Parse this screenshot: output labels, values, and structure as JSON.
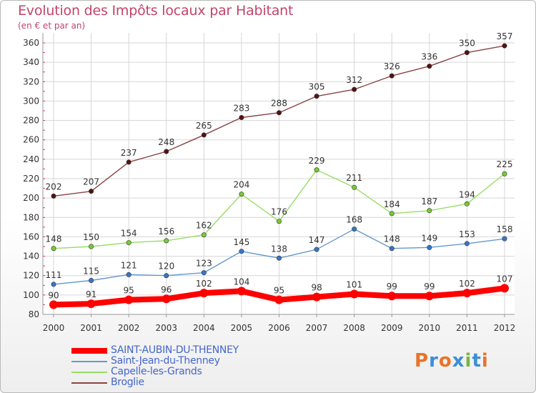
{
  "title": "Evolution des Impôts locaux par Habitant",
  "subtitle": "(en € et par an)",
  "logo": {
    "text": "Proxiti",
    "colors": [
      "#e8732a",
      "#3b8fd6",
      "#e8732a",
      "#3b8fd6",
      "#7cb342",
      "#3b8fd6",
      "#e8732a"
    ]
  },
  "chart_data": {
    "type": "line",
    "x": [
      "2000",
      "2001",
      "2002",
      "2003",
      "2004",
      "2005",
      "2006",
      "2007",
      "2008",
      "2009",
      "2010",
      "2011",
      "2012"
    ],
    "ylim": [
      80,
      360
    ],
    "yticks": [
      80,
      100,
      120,
      140,
      160,
      180,
      200,
      220,
      240,
      260,
      280,
      300,
      320,
      340,
      360
    ],
    "grid": true,
    "legend_position": "bottom",
    "series": [
      {
        "name": "SAINT-AUBIN-DU-THENNEY",
        "color": "#ff0000",
        "marker_color": "#ff0000",
        "bold": true,
        "values": [
          90,
          91,
          95,
          96,
          102,
          104,
          95,
          98,
          101,
          99,
          99,
          102,
          107
        ]
      },
      {
        "name": "Saint-Jean-du-Thenney",
        "color": "#6699cc",
        "marker_color": "#3377cc",
        "values": [
          111,
          115,
          121,
          120,
          123,
          145,
          138,
          147,
          168,
          148,
          149,
          153,
          158
        ]
      },
      {
        "name": "Capelle-les-Grands",
        "color": "#99dd66",
        "marker_color": "#77cc33",
        "values": [
          148,
          150,
          154,
          156,
          162,
          204,
          176,
          229,
          211,
          184,
          187,
          194,
          225
        ]
      },
      {
        "name": "Broglie",
        "color": "#884444",
        "marker_color": "#551111",
        "values": [
          202,
          207,
          237,
          248,
          265,
          283,
          288,
          305,
          312,
          326,
          336,
          350,
          357
        ]
      }
    ]
  }
}
